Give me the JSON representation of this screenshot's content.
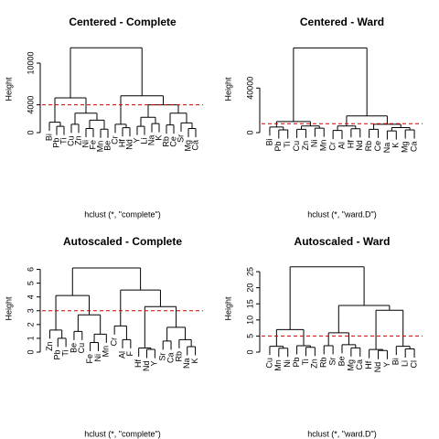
{
  "chart_data": [
    {
      "type": "dendrogram",
      "title": "Centered - Complete",
      "ylabel": "Height",
      "xlabel": "hclust (*, \"complete\")",
      "ylim": [
        0,
        12500
      ],
      "yticks": [
        0,
        4000,
        10000
      ],
      "cut": 4000,
      "cut_color": "#cc0000",
      "tree": {
        "height": 12200,
        "children": [
          {
            "height": 5000,
            "children": [
              {
                "height": 1500,
                "children": [
                  {
                    "label": "Bi"
                  },
                  {
                    "height": 900,
                    "children": [
                      {
                        "label": "Pb"
                      },
                      {
                        "label": "Ti"
                      }
                    ]
                  }
                ]
              },
              {
                "height": 2800,
                "children": [
                  {
                    "height": 1200,
                    "children": [
                      {
                        "label": "Cu"
                      },
                      {
                        "label": "Zn"
                      }
                    ]
                  },
                  {
                    "height": 1800,
                    "children": [
                      {
                        "height": 600,
                        "children": [
                          {
                            "label": "Ni"
                          },
                          {
                            "label": "Fe"
                          }
                        ]
                      },
                      {
                        "height": 500,
                        "children": [
                          {
                            "label": "Mn"
                          },
                          {
                            "label": "Be"
                          }
                        ]
                      }
                    ]
                  }
                ]
              }
            ]
          },
          {
            "height": 5300,
            "children": [
              {
                "height": 1200,
                "children": [
                  {
                    "label": "Cr"
                  },
                  {
                    "height": 700,
                    "children": [
                      {
                        "label": "Hf"
                      },
                      {
                        "label": "Nd"
                      }
                    ]
                  }
                ]
              },
              {
                "height": 4000,
                "children": [
                  {
                    "height": 2200,
                    "children": [
                      {
                        "height": 900,
                        "children": [
                          {
                            "label": "Y"
                          },
                          {
                            "label": "Li"
                          }
                        ]
                      },
                      {
                        "height": 1300,
                        "children": [
                          {
                            "label": "Na"
                          },
                          {
                            "label": "K"
                          }
                        ]
                      }
                    ]
                  },
                  {
                    "height": 2800,
                    "children": [
                      {
                        "height": 1100,
                        "children": [
                          {
                            "label": "Rb"
                          },
                          {
                            "label": "Ce"
                          }
                        ]
                      },
                      {
                        "height": 1400,
                        "children": [
                          {
                            "label": "Sr"
                          },
                          {
                            "height": 600,
                            "children": [
                              {
                                "label": "Mg"
                              },
                              {
                                "label": "Ca"
                              }
                            ]
                          }
                        ]
                      }
                    ]
                  }
                ]
              }
            ]
          }
        ]
      }
    },
    {
      "type": "dendrogram",
      "title": "Centered - Ward",
      "ylabel": "Height",
      "xlabel": "hclust (*, \"ward.D\")",
      "ylim": [
        0,
        78000
      ],
      "yticks": [
        0,
        40000
      ],
      "cut": 8000,
      "cut_color": "#cc0000",
      "tree": {
        "height": 76000,
        "children": [
          {
            "height": 10000,
            "children": [
              {
                "height": 5000,
                "children": [
                  {
                    "label": "Bi"
                  },
                  {
                    "height": 2500,
                    "children": [
                      {
                        "label": "Pb"
                      },
                      {
                        "label": "Ti"
                      }
                    ]
                  }
                ]
              },
              {
                "height": 6000,
                "children": [
                  {
                    "height": 3000,
                    "children": [
                      {
                        "label": "Cu"
                      },
                      {
                        "label": "Zn"
                      }
                    ]
                  },
                  {
                    "height": 4000,
                    "children": [
                      {
                        "label": "Ni"
                      },
                      {
                        "label": "Mn"
                      }
                    ]
                  }
                ]
              }
            ]
          },
          {
            "height": 15000,
            "children": [
              {
                "height": 6000,
                "children": [
                  {
                    "height": 2000,
                    "children": [
                      {
                        "label": "Cr"
                      },
                      {
                        "label": "Al"
                      }
                    ]
                  },
                  {
                    "height": 3500,
                    "children": [
                      {
                        "label": "Hf"
                      },
                      {
                        "label": "Nd"
                      }
                    ]
                  }
                ]
              },
              {
                "height": 7500,
                "children": [
                  {
                    "height": 3000,
                    "children": [
                      {
                        "label": "Rb"
                      },
                      {
                        "label": "Ce"
                      }
                    ]
                  },
                  {
                    "height": 4500,
                    "children": [
                      {
                        "height": 1500,
                        "children": [
                          {
                            "label": "Na"
                          },
                          {
                            "label": "K"
                          }
                        ]
                      },
                      {
                        "height": 2500,
                        "children": [
                          {
                            "label": "Mg"
                          },
                          {
                            "label": "Ca"
                          }
                        ]
                      }
                    ]
                  }
                ]
              }
            ]
          }
        ]
      }
    },
    {
      "type": "dendrogram",
      "title": "Autoscaled - Complete",
      "ylabel": "Height",
      "xlabel": "hclust (*, \"complete\")",
      "ylim": [
        0,
        6.3
      ],
      "yticks": [
        0,
        1,
        2,
        3,
        4,
        5,
        6
      ],
      "cut": 3,
      "cut_color": "#cc0000",
      "tree": {
        "height": 6.1,
        "children": [
          {
            "height": 4.1,
            "children": [
              {
                "height": 1.6,
                "children": [
                  {
                    "label": "Zn"
                  },
                  {
                    "height": 1.0,
                    "children": [
                      {
                        "label": "Pb"
                      },
                      {
                        "label": "Ti"
                      }
                    ]
                  }
                ]
              },
              {
                "height": 2.7,
                "children": [
                  {
                    "height": 1.5,
                    "children": [
                      {
                        "label": "Be"
                      },
                      {
                        "label": "Cu"
                      }
                    ]
                  },
                  {
                    "height": 1.3,
                    "children": [
                      {
                        "height": 0.7,
                        "children": [
                          {
                            "label": "Fe"
                          },
                          {
                            "label": "Ni"
                          }
                        ]
                      },
                      {
                        "label": "Mn"
                      }
                    ]
                  }
                ]
              }
            ]
          },
          {
            "height": 4.5,
            "children": [
              {
                "height": 1.9,
                "children": [
                  {
                    "label": "Cr"
                  },
                  {
                    "height": 0.9,
                    "children": [
                      {
                        "label": "Al"
                      },
                      {
                        "label": "F"
                      }
                    ]
                  }
                ]
              },
              {
                "height": 3.3,
                "children": [
                  {
                    "height": 0.3,
                    "children": [
                      {
                        "label": "Hf"
                      },
                      {
                        "height": 0.2,
                        "children": [
                          {
                            "label": "Nd"
                          },
                          {
                            "label": "Y"
                          }
                        ]
                      }
                    ]
                  },
                  {
                    "height": 1.8,
                    "children": [
                      {
                        "height": 0.8,
                        "children": [
                          {
                            "label": "Sr"
                          },
                          {
                            "label": "Ca"
                          }
                        ]
                      },
                      {
                        "height": 0.9,
                        "children": [
                          {
                            "label": "Rb"
                          },
                          {
                            "height": 0.4,
                            "children": [
                              {
                                "label": "Na"
                              },
                              {
                                "label": "K"
                              }
                            ]
                          }
                        ]
                      }
                    ]
                  }
                ]
              }
            ]
          }
        ]
      }
    },
    {
      "type": "dendrogram",
      "title": "Autoscaled - Ward",
      "ylabel": "Height",
      "xlabel": "hclust (*, \"ward.D\")",
      "ylim": [
        0,
        27
      ],
      "yticks": [
        0,
        5,
        10,
        15,
        20,
        25
      ],
      "cut": 5,
      "cut_color": "#cc0000",
      "tree": {
        "height": 26.5,
        "children": [
          {
            "height": 7,
            "children": [
              {
                "height": 1.8,
                "children": [
                  {
                    "label": "Cu"
                  },
                  {
                    "height": 1.2,
                    "children": [
                      {
                        "label": "Mn"
                      },
                      {
                        "label": "Ni"
                      }
                    ]
                  }
                ]
              },
              {
                "height": 2.0,
                "children": [
                  {
                    "label": "Pb"
                  },
                  {
                    "height": 1.5,
                    "children": [
                      {
                        "label": "Ti"
                      },
                      {
                        "label": "Zn"
                      }
                    ]
                  }
                ]
              }
            ]
          },
          {
            "height": 14.5,
            "children": [
              {
                "height": 6,
                "children": [
                  {
                    "height": 2,
                    "children": [
                      {
                        "label": "Rb"
                      },
                      {
                        "label": "Sr"
                      }
                    ]
                  },
                  {
                    "height": 2.3,
                    "children": [
                      {
                        "label": "Be"
                      },
                      {
                        "height": 1.3,
                        "children": [
                          {
                            "label": "Mg"
                          },
                          {
                            "label": "Ca"
                          }
                        ]
                      }
                    ]
                  }
                ]
              },
              {
                "height": 13,
                "children": [
                  {
                    "height": 0.8,
                    "children": [
                      {
                        "label": "Hf"
                      },
                      {
                        "height": 0.5,
                        "children": [
                          {
                            "label": "Nd"
                          },
                          {
                            "label": "Y"
                          }
                        ]
                      }
                    ]
                  },
                  {
                    "height": 1.8,
                    "children": [
                      {
                        "label": "Bi"
                      },
                      {
                        "height": 1.0,
                        "children": [
                          {
                            "label": "Li"
                          },
                          {
                            "label": "Cl"
                          }
                        ]
                      }
                    ]
                  }
                ]
              }
            ]
          }
        ]
      }
    }
  ]
}
